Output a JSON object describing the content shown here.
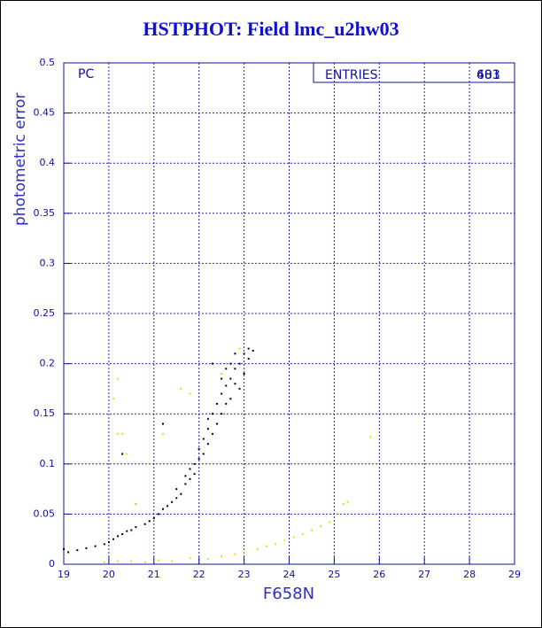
{
  "chart_data": {
    "type": "scatter",
    "title": "HSTPHOT: Field lmc_u2hw03",
    "x_label": "F658N",
    "y_label": "photometric error",
    "panel_label": "PC",
    "stats": {
      "label": "ENTRIES",
      "values": [
        "603",
        "481"
      ]
    },
    "xlim": [
      19,
      29
    ],
    "ylim": [
      0,
      0.5
    ],
    "xticks": [
      19,
      20,
      21,
      22,
      23,
      24,
      25,
      26,
      27,
      28,
      29
    ],
    "yticks": [
      0,
      0.05,
      0.1,
      0.15,
      0.2,
      0.25,
      0.3,
      0.35,
      0.4,
      0.45,
      0.5
    ],
    "grid": true,
    "series": [
      {
        "color": "#000000",
        "x": [
          19.0,
          19.1,
          19.3,
          19.5,
          19.7,
          19.9,
          20.0,
          20.1,
          20.2,
          20.3,
          20.4,
          20.5,
          20.6,
          20.8,
          20.9,
          21.0,
          21.1,
          21.2,
          21.3,
          21.4,
          21.5,
          21.5,
          21.6,
          21.7,
          21.7,
          21.8,
          21.8,
          21.9,
          21.9,
          22.0,
          22.0,
          22.1,
          22.1,
          22.2,
          22.2,
          22.2,
          22.3,
          22.3,
          22.4,
          22.4,
          22.5,
          22.5,
          22.5,
          22.6,
          22.6,
          22.6,
          22.7,
          22.7,
          22.7,
          22.8,
          22.8,
          22.8,
          22.9,
          22.9,
          23.0,
          23.0,
          23.1,
          23.1,
          23.2,
          20.3,
          20.6,
          21.2,
          22.3
        ],
        "values": [
          0.015,
          0.012,
          0.014,
          0.016,
          0.018,
          0.02,
          0.022,
          0.025,
          0.028,
          0.03,
          0.033,
          0.034,
          0.037,
          0.04,
          0.043,
          0.046,
          0.05,
          0.055,
          0.058,
          0.062,
          0.066,
          0.075,
          0.07,
          0.08,
          0.088,
          0.085,
          0.095,
          0.1,
          0.09,
          0.105,
          0.115,
          0.11,
          0.125,
          0.12,
          0.135,
          0.145,
          0.13,
          0.15,
          0.14,
          0.16,
          0.15,
          0.17,
          0.185,
          0.16,
          0.178,
          0.195,
          0.165,
          0.185,
          0.2,
          0.18,
          0.195,
          0.21,
          0.175,
          0.2,
          0.19,
          0.21,
          0.205,
          0.215,
          0.213,
          0.11,
          0.06,
          0.14,
          0.2
        ]
      },
      {
        "color": "#e8e000",
        "x": [
          19.9,
          20.2,
          20.5,
          20.8,
          21.1,
          21.4,
          21.8,
          22.2,
          22.5,
          22.8,
          23.0,
          23.3,
          23.5,
          23.7,
          23.9,
          24.1,
          24.3,
          24.5,
          24.7,
          24.9,
          25.1,
          25.2,
          25.3,
          25.8,
          20.2,
          20.3,
          20.2,
          20.4,
          21.2,
          21.6,
          21.8,
          22.6,
          22.9,
          22.5,
          20.6,
          20.1
        ],
        "values": [
          0.002,
          0.003,
          0.003,
          0.002,
          0.004,
          0.003,
          0.006,
          0.005,
          0.008,
          0.01,
          0.012,
          0.015,
          0.018,
          0.02,
          0.024,
          0.027,
          0.03,
          0.034,
          0.038,
          0.042,
          0.05,
          0.06,
          0.062,
          0.127,
          0.185,
          0.13,
          0.13,
          0.11,
          0.13,
          0.175,
          0.17,
          0.2,
          0.215,
          0.19,
          0.06,
          0.165
        ]
      }
    ]
  }
}
